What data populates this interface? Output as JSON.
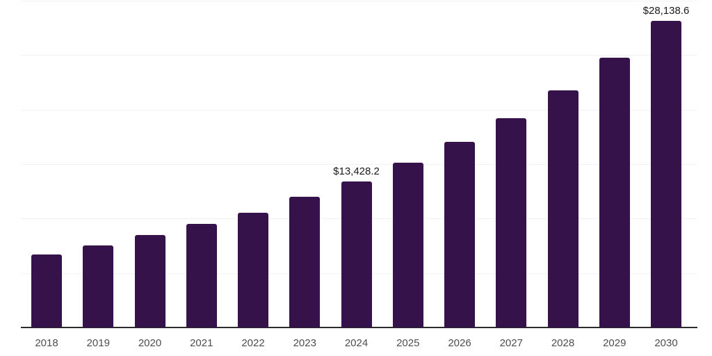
{
  "chart_data": {
    "type": "bar",
    "title": "",
    "xlabel": "",
    "ylabel": "",
    "categories": [
      "2018",
      "2019",
      "2020",
      "2021",
      "2022",
      "2023",
      "2024",
      "2025",
      "2026",
      "2027",
      "2028",
      "2029",
      "2030"
    ],
    "values": [
      6700,
      7530,
      8480,
      9500,
      10530,
      12000,
      13428.2,
      15120,
      17040,
      19200,
      21760,
      24760,
      28138.6
    ],
    "data_labels": [
      "",
      "",
      "",
      "",
      "",
      "",
      "$13,428.2",
      "",
      "",
      "",
      "",
      "",
      "$28,138.6"
    ],
    "ylim": [
      0,
      30000
    ],
    "gridline_step": 5000,
    "grid": "horizontal-only",
    "legend": "none",
    "y_axis_labels_visible": false,
    "bar_color": "#35124A",
    "axis_line_color": "#2b2b2b",
    "gridline_color": "#f2f2f2",
    "tick_label_color": "#4d4d4d",
    "data_label_color": "#1a1a1a",
    "background_color": "#ffffff"
  }
}
